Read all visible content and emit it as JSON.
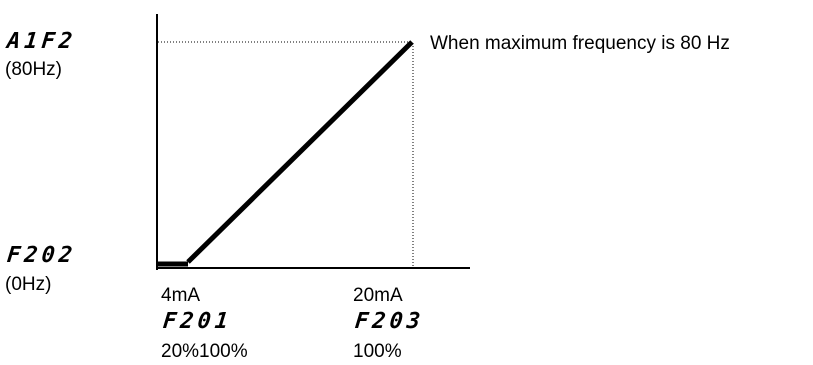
{
  "max_param": {
    "code": "A1F2",
    "value": "(80Hz)"
  },
  "min_param": {
    "code": "F202",
    "value": "(0Hz)"
  },
  "annotation": "When maximum frequency is 80 Hz",
  "x_points": [
    {
      "current": "4mA",
      "code": "F201",
      "percent": "20%100%"
    },
    {
      "current": "20mA",
      "code": "F203",
      "percent": "100%"
    }
  ],
  "colors": {
    "line": "#000000",
    "guide": "#000000",
    "background": "#ffffff"
  }
}
